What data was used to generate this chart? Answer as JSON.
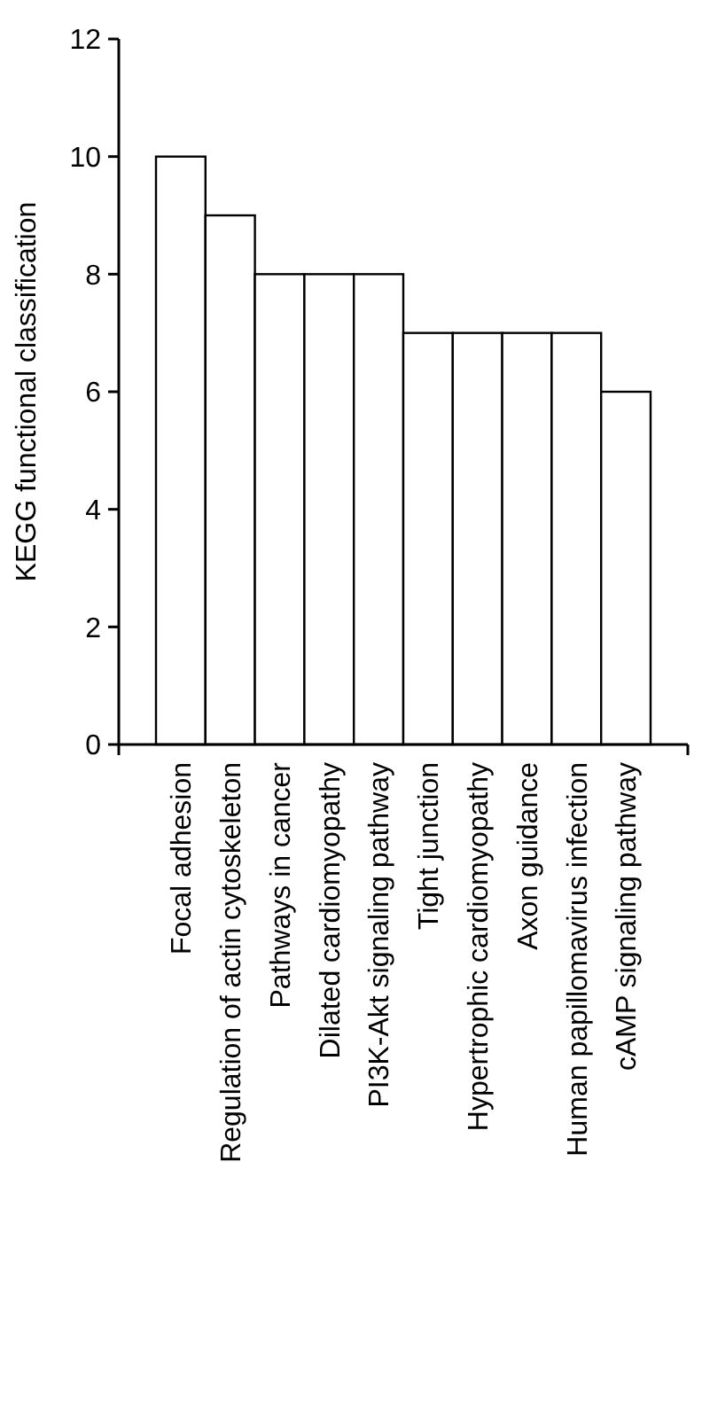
{
  "chart_data": {
    "type": "bar",
    "ylabel": "KEGG functional classification",
    "categories": [
      "Focal adhesion",
      "Regulation of actin cytoskeleton",
      "Pathways in cancer",
      "Dilated cardiomyopathy",
      "PI3K-Akt signaling pathway",
      "Tight junction",
      "Hypertrophic cardiomyopathy",
      "Axon guidance",
      "Human papillomavirus infection",
      "cAMP signaling pathway"
    ],
    "values": [
      10,
      9,
      8,
      8,
      8,
      7,
      7,
      7,
      7,
      6
    ],
    "color": "#ffffff",
    "ylim": [
      0,
      12
    ],
    "yticks": [
      0,
      2,
      4,
      6,
      8,
      10,
      12
    ],
    "grid": false
  }
}
